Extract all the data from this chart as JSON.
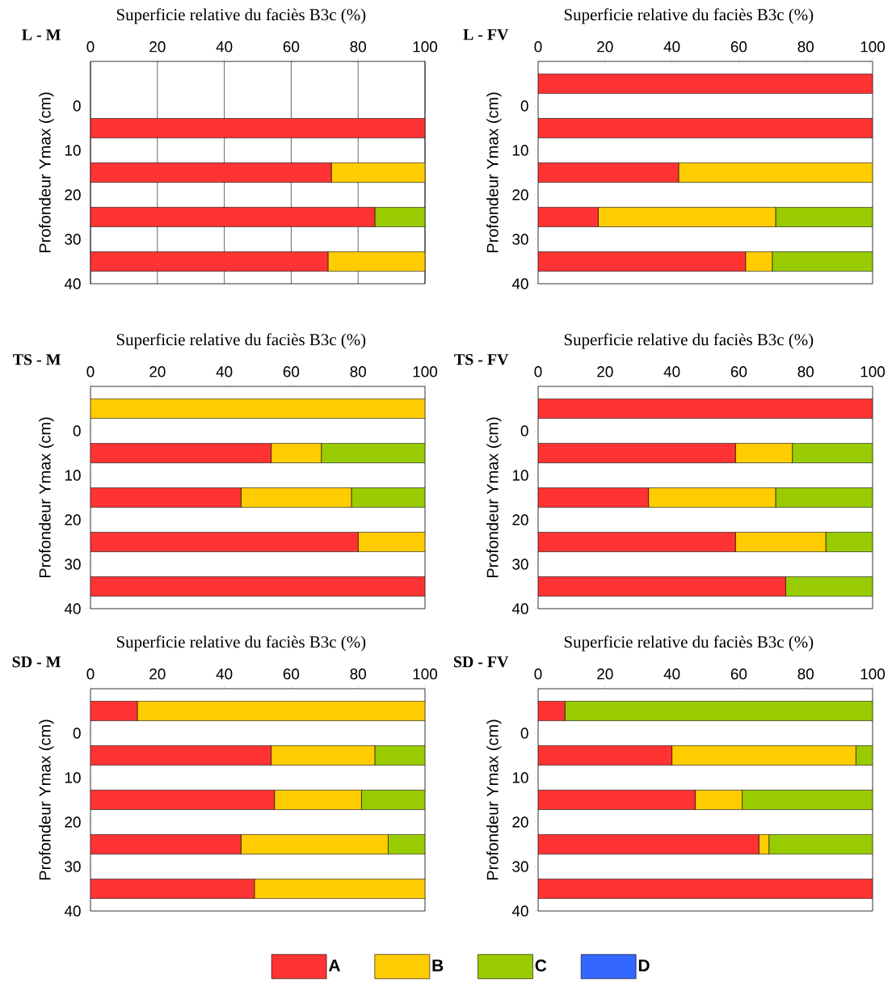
{
  "chart_data": [
    {
      "type": "bar",
      "orientation": "horizontal",
      "stacked": true,
      "title": "L - M",
      "xlabel": "Superficie relative du faciès B3c  (%)",
      "ylabel": "Profondeur Ymax (cm)",
      "x": [
        5,
        15,
        25,
        35
      ],
      "xlim": [
        0,
        100
      ],
      "xticks": [
        0,
        20,
        40,
        60,
        80,
        100
      ],
      "ylim": [
        40,
        -10
      ],
      "yticks": [
        0,
        10,
        20,
        30,
        40
      ],
      "grid": "x",
      "series": [
        {
          "color": "#ff3333",
          "values": [
            100,
            72,
            85,
            71
          ]
        },
        {
          "color": "#ffcc00",
          "values": [
            0,
            28,
            0,
            29
          ]
        },
        {
          "color": "#99cc00",
          "values": [
            0,
            0,
            15,
            0
          ]
        },
        {
          "color": "#3366ff",
          "values": [
            0,
            0,
            0,
            0
          ]
        }
      ]
    },
    {
      "type": "bar",
      "orientation": "horizontal",
      "stacked": true,
      "title": "L - FV",
      "xlabel": "Superficie relative du faciès B3c  (%)",
      "ylabel": "Profondeur Ymax (cm)",
      "x": [
        -5,
        5,
        15,
        25,
        35
      ],
      "xlim": [
        0,
        100
      ],
      "xticks": [
        0,
        20,
        40,
        60,
        80,
        100
      ],
      "ylim": [
        40,
        -10
      ],
      "yticks": [
        0,
        10,
        20,
        30,
        40
      ],
      "series": [
        {
          "color": "#ff3333",
          "values": [
            100,
            100,
            42,
            18,
            62
          ]
        },
        {
          "color": "#ffcc00",
          "values": [
            0,
            0,
            58,
            53,
            8
          ]
        },
        {
          "color": "#99cc00",
          "values": [
            0,
            0,
            0,
            29,
            30
          ]
        },
        {
          "color": "#3366ff",
          "values": [
            0,
            0,
            0,
            0,
            0
          ]
        }
      ]
    },
    {
      "type": "bar",
      "orientation": "horizontal",
      "stacked": true,
      "title": "TS - M",
      "xlabel": "Superficie relative du faciès B3c  (%)",
      "ylabel": "Profondeur Ymax (cm)",
      "x": [
        -5,
        5,
        15,
        25,
        35
      ],
      "xlim": [
        0,
        100
      ],
      "xticks": [
        0,
        20,
        40,
        60,
        80,
        100
      ],
      "ylim": [
        40,
        -10
      ],
      "yticks": [
        0,
        10,
        20,
        30,
        40
      ],
      "series": [
        {
          "color": "#ff3333",
          "values": [
            0,
            54,
            45,
            80,
            100
          ]
        },
        {
          "color": "#ffcc00",
          "values": [
            100,
            15,
            33,
            20,
            0
          ]
        },
        {
          "color": "#99cc00",
          "values": [
            0,
            31,
            22,
            0,
            0
          ]
        },
        {
          "color": "#3366ff",
          "values": [
            0,
            0,
            0,
            0,
            0
          ]
        }
      ]
    },
    {
      "type": "bar",
      "orientation": "horizontal",
      "stacked": true,
      "title": "TS - FV",
      "xlabel": "Superficie relative du faciès B3c  (%)",
      "ylabel": "Profondeur Ymax (cm)",
      "x": [
        -5,
        5,
        15,
        25,
        35
      ],
      "xlim": [
        0,
        100
      ],
      "xticks": [
        0,
        20,
        40,
        60,
        80,
        100
      ],
      "ylim": [
        40,
        -10
      ],
      "yticks": [
        0,
        10,
        20,
        30,
        40
      ],
      "series": [
        {
          "color": "#ff3333",
          "values": [
            100,
            59,
            33,
            59,
            74
          ]
        },
        {
          "color": "#ffcc00",
          "values": [
            0,
            17,
            38,
            27,
            0
          ]
        },
        {
          "color": "#99cc00",
          "values": [
            0,
            24,
            29,
            14,
            26
          ]
        },
        {
          "color": "#3366ff",
          "values": [
            0,
            0,
            0,
            0,
            0
          ]
        }
      ]
    },
    {
      "type": "bar",
      "orientation": "horizontal",
      "stacked": true,
      "title": "SD - M",
      "xlabel": "Superficie relative du faciès B3c  (%)",
      "ylabel": "Profondeur Ymax (cm)",
      "x": [
        -5,
        5,
        15,
        25,
        35
      ],
      "xlim": [
        0,
        100
      ],
      "xticks": [
        0,
        20,
        40,
        60,
        80,
        100
      ],
      "ylim": [
        40,
        -10
      ],
      "yticks": [
        0,
        10,
        20,
        30,
        40
      ],
      "series": [
        {
          "color": "#ff3333",
          "values": [
            14,
            54,
            55,
            45,
            49
          ]
        },
        {
          "color": "#ffcc00",
          "values": [
            86,
            31,
            26,
            44,
            51
          ]
        },
        {
          "color": "#99cc00",
          "values": [
            0,
            15,
            19,
            11,
            0
          ]
        },
        {
          "color": "#3366ff",
          "values": [
            0,
            0,
            0,
            0,
            0
          ]
        }
      ]
    },
    {
      "type": "bar",
      "orientation": "horizontal",
      "stacked": true,
      "title": "SD - FV",
      "xlabel": "Superficie relative du faciès B3c  (%)",
      "ylabel": "Profondeur Ymax (cm)",
      "x": [
        -5,
        5,
        15,
        25,
        35
      ],
      "xlim": [
        0,
        100
      ],
      "xticks": [
        0,
        20,
        40,
        60,
        80,
        100
      ],
      "ylim": [
        40,
        -10
      ],
      "yticks": [
        0,
        10,
        20,
        30,
        40
      ],
      "legend": "bottom",
      "series": [
        {
          "name": "A",
          "color": "#ff3333",
          "values": [
            8,
            40,
            47,
            66,
            100
          ]
        },
        {
          "name": "B",
          "color": "#ffcc00",
          "values": [
            0,
            55,
            14,
            3,
            0
          ]
        },
        {
          "name": "C",
          "color": "#99cc00",
          "values": [
            92,
            5,
            39,
            31,
            0
          ]
        },
        {
          "name": "D",
          "color": "#3366ff",
          "values": [
            0,
            0,
            0,
            0,
            0
          ]
        }
      ]
    }
  ]
}
